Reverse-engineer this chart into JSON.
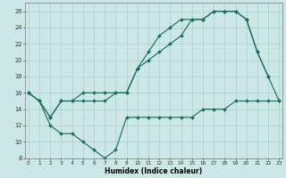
{
  "title": "",
  "xlabel": "Humidex (Indice chaleur)",
  "bg_color": "#cce8e4",
  "grid_color": "#aacfcb",
  "line_color": "#1e6e65",
  "ylim": [
    8,
    27
  ],
  "xlim": [
    -0.3,
    23.3
  ],
  "yticks": [
    8,
    10,
    12,
    14,
    16,
    18,
    20,
    22,
    24,
    26
  ],
  "xticks": [
    0,
    1,
    2,
    3,
    4,
    5,
    6,
    7,
    8,
    9,
    10,
    11,
    12,
    13,
    14,
    15,
    16,
    17,
    18,
    19,
    20,
    21,
    22,
    23
  ],
  "line1_x": [
    0,
    1,
    2,
    3,
    4,
    5,
    6,
    7,
    8,
    9,
    10,
    11,
    12,
    13,
    14,
    15,
    16,
    17,
    18,
    19,
    20,
    21,
    22
  ],
  "line1_y": [
    16,
    15,
    13,
    15,
    15,
    15,
    15,
    15,
    16,
    16,
    19,
    20,
    21,
    22,
    23,
    25,
    25,
    26,
    26,
    26,
    25,
    21,
    18
  ],
  "line2_x": [
    0,
    1,
    2,
    3,
    4,
    5,
    6,
    7,
    8,
    9,
    10,
    11,
    12,
    13,
    14,
    15,
    16,
    17,
    18,
    19,
    20,
    21,
    22,
    23
  ],
  "line2_y": [
    16,
    15,
    13,
    15,
    15,
    16,
    16,
    16,
    16,
    16,
    19,
    21,
    23,
    24,
    25,
    25,
    25,
    26,
    26,
    26,
    25,
    21,
    18,
    15
  ],
  "line3_x": [
    0,
    1,
    2,
    3,
    4,
    5,
    6,
    7,
    8,
    9,
    10,
    11,
    12,
    13,
    14,
    15,
    16,
    17,
    18,
    19,
    20,
    21,
    22,
    23
  ],
  "line3_y": [
    16,
    15,
    12,
    11,
    11,
    10,
    9,
    8,
    9,
    13,
    13,
    13,
    13,
    13,
    13,
    13,
    14,
    14,
    14,
    15,
    15,
    15,
    15,
    15
  ]
}
